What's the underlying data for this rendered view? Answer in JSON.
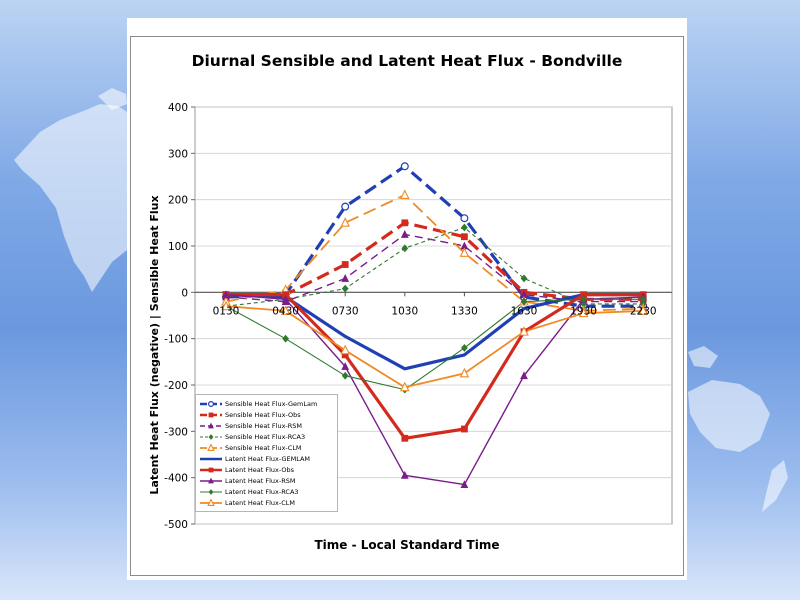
{
  "chart_data": {
    "type": "line",
    "title": "Diurnal Sensible and Latent Heat Flux - Bondville",
    "xlabel": "Time - Local Standard Time",
    "ylabel": "Latent Heat Flux (negative) | Sensible Heat Flux",
    "categories": [
      "0130",
      "0430",
      "0730",
      "1030",
      "1330",
      "1630",
      "1930",
      "2230"
    ],
    "ylim": [
      -500,
      400
    ],
    "yticks": [
      400,
      300,
      200,
      100,
      0,
      -100,
      -200,
      -300,
      -400,
      -500
    ],
    "grid": true,
    "legend_position": "bottom-left",
    "series": [
      {
        "name": "Sensible Heat Flux-GemLam",
        "color": "#1f3fb5",
        "dash": "long",
        "width": 3.2,
        "marker": "circle-open",
        "values": [
          -10,
          -5,
          185,
          272,
          160,
          -10,
          -30,
          -30
        ]
      },
      {
        "name": "Sensible Heat Flux-Obs",
        "color": "#d42a1e",
        "dash": "long",
        "width": 3.2,
        "marker": "square",
        "values": [
          -5,
          -5,
          60,
          150,
          120,
          0,
          -15,
          -15
        ]
      },
      {
        "name": "Sensible Heat Flux-RSM",
        "color": "#7a1c8a",
        "dash": "mid",
        "width": 1.4,
        "marker": "triangle",
        "values": [
          -10,
          -20,
          30,
          125,
          100,
          -5,
          -20,
          -20
        ]
      },
      {
        "name": "Sensible Heat Flux-RCA3",
        "color": "#2f7a2f",
        "dash": "short",
        "width": 1.1,
        "marker": "diamond",
        "values": [
          -30,
          -15,
          8,
          95,
          140,
          30,
          -25,
          -25
        ]
      },
      {
        "name": "Sensible Heat Flux-CLM",
        "color": "#f08a24",
        "dash": "long",
        "width": 1.8,
        "marker": "triangle-open",
        "values": [
          -20,
          5,
          150,
          210,
          85,
          -20,
          -40,
          -35
        ]
      },
      {
        "name": "Latent Heat Flux-GEMLAM",
        "color": "#1f3fb5",
        "dash": "solid",
        "width": 3.2,
        "marker": "none",
        "values": [
          -5,
          -10,
          -95,
          -165,
          -135,
          -35,
          -5,
          -5
        ]
      },
      {
        "name": "Latent Heat Flux-Obs",
        "color": "#d42a1e",
        "dash": "solid",
        "width": 3.2,
        "marker": "square",
        "values": [
          -5,
          -5,
          -135,
          -315,
          -295,
          -85,
          -5,
          -5
        ]
      },
      {
        "name": "Latent Heat Flux-RSM",
        "color": "#7a1c8a",
        "dash": "solid",
        "width": 1.4,
        "marker": "triangle",
        "values": [
          -5,
          -15,
          -160,
          -395,
          -415,
          -180,
          -15,
          -10
        ]
      },
      {
        "name": "Latent Heat Flux-RCA3",
        "color": "#2f7a2f",
        "dash": "solid",
        "width": 1.1,
        "marker": "diamond",
        "values": [
          -30,
          -100,
          -180,
          -210,
          -120,
          -20,
          -15,
          -15
        ]
      },
      {
        "name": "Latent Heat Flux-CLM",
        "color": "#f08a24",
        "dash": "solid",
        "width": 1.8,
        "marker": "triangle-open",
        "values": [
          -30,
          -40,
          -125,
          -205,
          -175,
          -85,
          -45,
          -40
        ]
      }
    ]
  }
}
